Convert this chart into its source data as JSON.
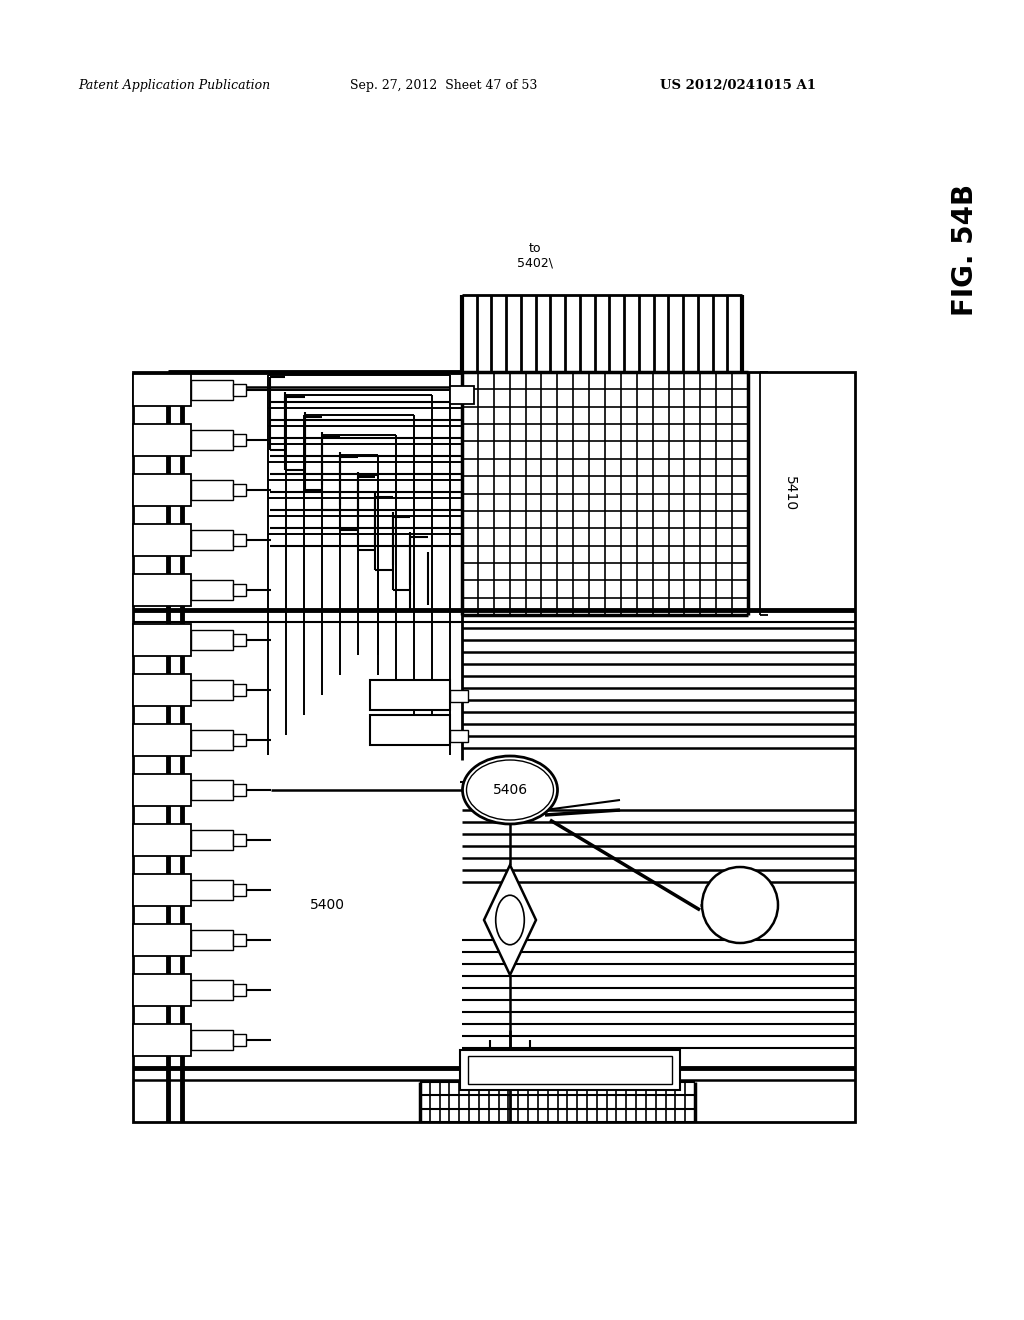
{
  "bg_color": "#ffffff",
  "lc": "#000000",
  "header_text": "Patent Application Publication",
  "header_date": "Sep. 27, 2012  Sheet 47 of 53",
  "header_patent": "US 2012/0241015 A1",
  "fig_label": "FIG. 54B",
  "label_5400": "5400",
  "label_5406": "5406",
  "label_5410": "5410",
  "label_to5402": "to\n5402\\"
}
